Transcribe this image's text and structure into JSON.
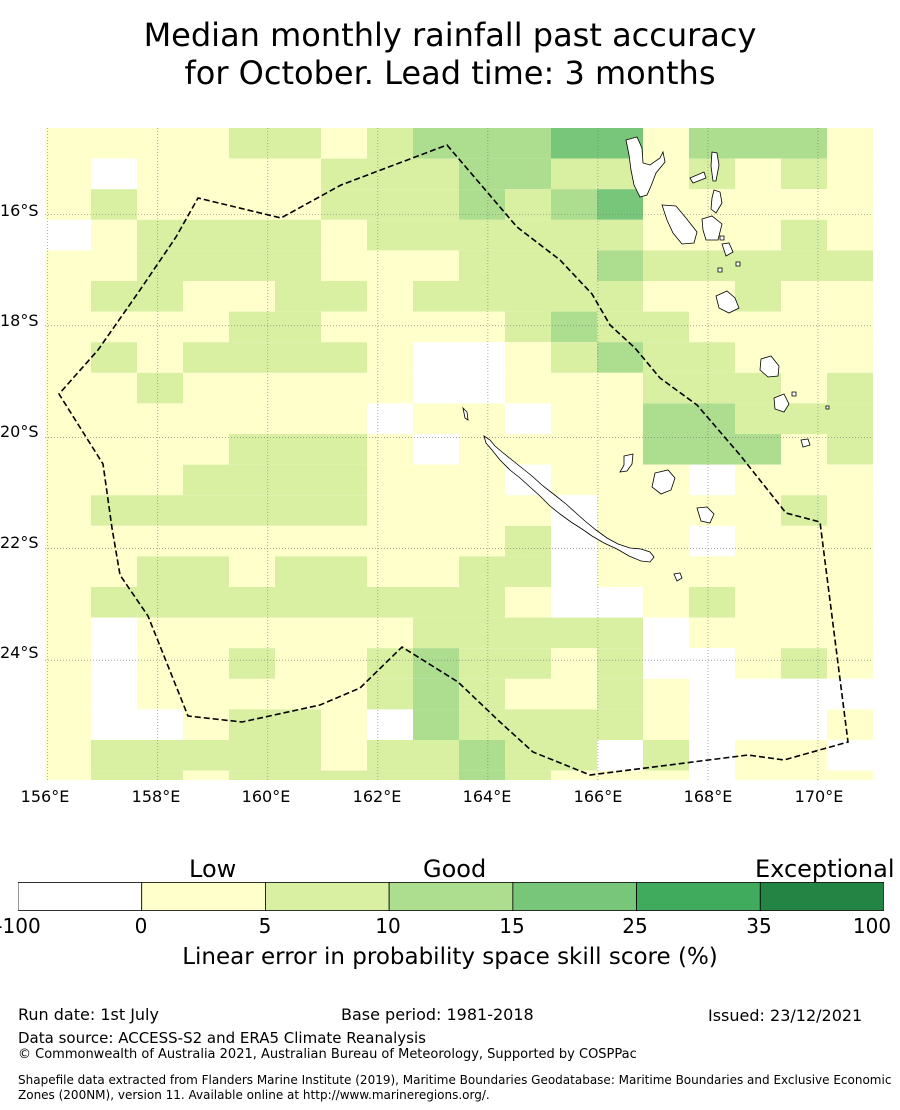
{
  "title": {
    "line1": "Median monthly rainfall past accuracy",
    "line2": "for October. Lead time: 3 months"
  },
  "map": {
    "lat_labels": [
      "16°S",
      "18°S",
      "20°S",
      "22°S",
      "24°S"
    ],
    "lon_labels": [
      "156°E",
      "158°E",
      "160°E",
      "162°E",
      "164°E",
      "166°E",
      "168°E",
      "170°E"
    ],
    "lon_extent": [
      155.95,
      171.0
    ],
    "lat_extent": [
      -26.15,
      -14.45
    ],
    "grid_step_lon": 0.5,
    "grid_step_lat": 0.5,
    "gridlines": true,
    "boundary": "EEZ (dashed line)",
    "skill_grid_legend": "each cell colour = category index (0: -100–0, 1: 0–5, 2: 5–10, 3: 10–15)"
  },
  "legend": {
    "categories": [
      "Low",
      "Good",
      "Exceptional"
    ],
    "bins": [
      {
        "range": "-100 to 0",
        "color": "#ffffff"
      },
      {
        "range": "0 to 5",
        "color": "#ffffcc"
      },
      {
        "range": "5 to 10",
        "color": "#d9f0a3"
      },
      {
        "range": "10 to 15",
        "color": "#addd8e"
      },
      {
        "range": "15 to 25",
        "color": "#78c679"
      },
      {
        "range": "25 to 35",
        "color": "#41ab5d"
      },
      {
        "range": "35 to 100",
        "color": "#238443"
      }
    ],
    "ticks": [
      "-100",
      "0",
      "5",
      "10",
      "15",
      "25",
      "35",
      "100"
    ],
    "label": "Linear error in probability space skill score (%)"
  },
  "footer": {
    "run_date": "Run date: 1st July",
    "base_period": "Base period: 1981-2018",
    "issued": "Issued: 23/12/2021",
    "data_source": "Data source: ACCESS-S2 and ERA5 Climate Reanalysis",
    "copyright": "© Commonwealth of Australia 2021, Australian Bureau of Meteorology, Supported by COSPPac",
    "shapefile_line1": "Shapefile data extracted from Flanders Marine Institute (2019), Maritime Boundaries Geodatabase: Maritime Boundaries and Exclusive Economic",
    "shapefile_line2": "Zones (200NM), version 11. Available online at http://www.marineregions.org/."
  }
}
